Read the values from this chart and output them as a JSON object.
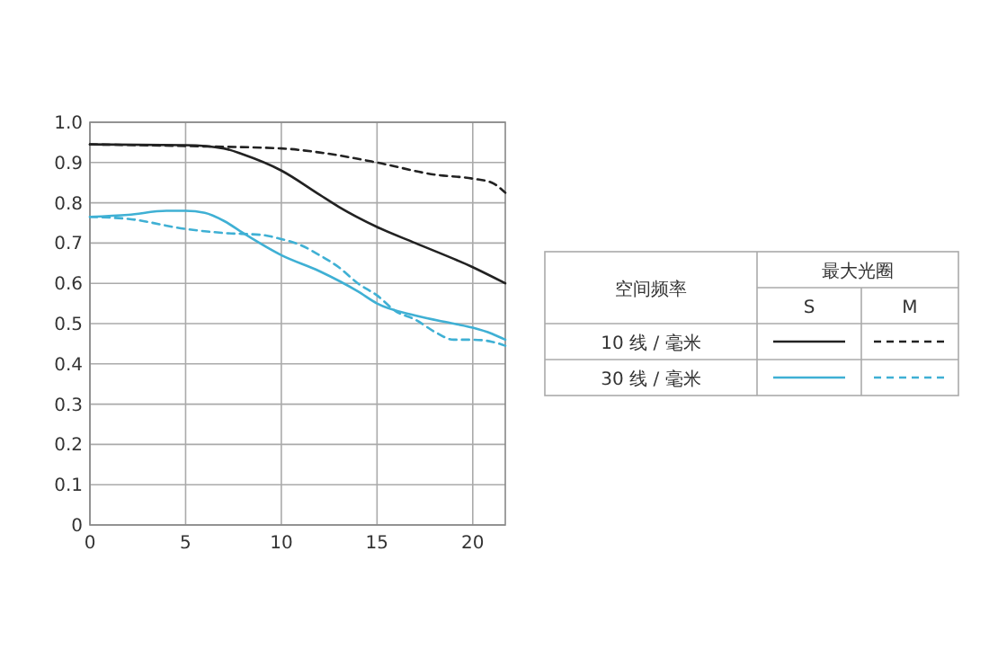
{
  "chart_data": {
    "type": "line",
    "xlim": [
      0,
      21.7
    ],
    "ylim": [
      0,
      1
    ],
    "xticks": [
      0,
      5,
      10,
      15,
      20
    ],
    "yticks": [
      0,
      0.1,
      0.2,
      0.3,
      0.4,
      0.5,
      0.6,
      0.7,
      0.8,
      0.9,
      {
        "value": 1,
        "label": "1.0"
      }
    ],
    "grid": true,
    "marker": "none",
    "annotations": [
      "空间频率",
      "最大光圈",
      "S",
      "M",
      "10 线 / 毫米",
      "30 线 / 毫米"
    ],
    "series": [
      {
        "color": "#222222",
        "line_style": "solid",
        "x": [
          0,
          5,
          7,
          8,
          10,
          12,
          13,
          15,
          17,
          20,
          21.7
        ],
        "values": [
          0.945,
          0.943,
          0.935,
          0.92,
          0.88,
          0.82,
          0.79,
          0.74,
          0.7,
          0.64,
          0.6
        ]
      },
      {
        "color": "#222222",
        "line_style": "dashed",
        "x": [
          0,
          6,
          10,
          12,
          15,
          18,
          20,
          21,
          21.7
        ],
        "values": [
          0.945,
          0.94,
          0.935,
          0.925,
          0.9,
          0.87,
          0.86,
          0.85,
          0.825
        ]
      },
      {
        "color": "#3fb0d4",
        "line_style": "solid",
        "x": [
          0,
          2,
          4,
          5,
          6,
          7,
          8,
          10,
          12,
          14,
          15,
          17,
          19,
          20,
          21,
          21.7
        ],
        "values": [
          0.765,
          0.77,
          0.78,
          0.78,
          0.775,
          0.755,
          0.725,
          0.67,
          0.63,
          0.58,
          0.55,
          0.52,
          0.5,
          0.49,
          0.475,
          0.46
        ]
      },
      {
        "color": "#3fb0d4",
        "line_style": "dashed",
        "x": [
          0,
          2,
          5,
          7,
          9,
          10,
          11,
          12,
          13,
          14,
          15,
          16,
          17,
          18,
          19,
          20,
          21,
          21.7
        ],
        "values": [
          0.765,
          0.76,
          0.735,
          0.725,
          0.72,
          0.71,
          0.695,
          0.67,
          0.64,
          0.6,
          0.57,
          0.53,
          0.51,
          0.48,
          0.46,
          0.46,
          0.455,
          0.445
        ]
      }
    ]
  }
}
